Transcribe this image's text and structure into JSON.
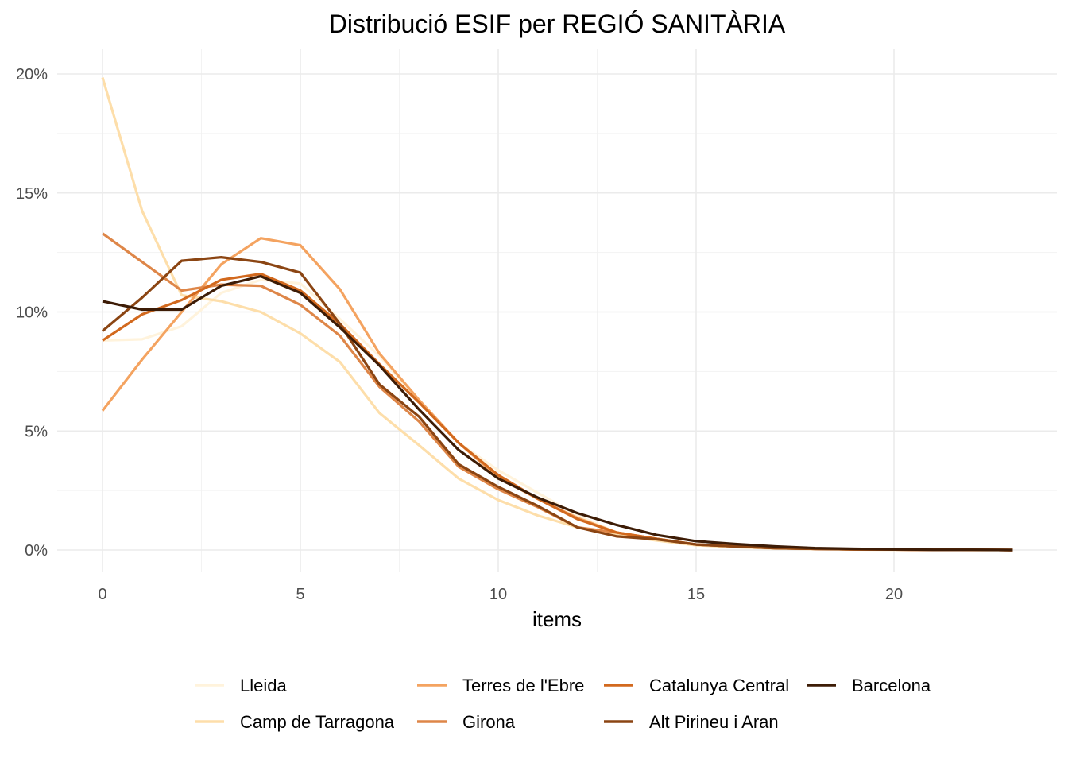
{
  "chart_data": {
    "type": "line",
    "title": "Distribució ESIF per REGIÓ SANITÀRIA",
    "xlabel": "items",
    "ylabel": "",
    "xlim": [
      0,
      23
    ],
    "ylim": [
      0,
      20
    ],
    "x_ticks": [
      0,
      5,
      10,
      15,
      20
    ],
    "x_tick_labels": [
      "0",
      "5",
      "10",
      "15",
      "20"
    ],
    "y_ticks": [
      0,
      5,
      10,
      15,
      20
    ],
    "y_tick_labels": [
      "0%",
      "5%",
      "10%",
      "15%",
      "20%"
    ],
    "grid": true,
    "legend_position": "bottom",
    "x": [
      0,
      1,
      2,
      3,
      4,
      5,
      6,
      7,
      8,
      9,
      10,
      11,
      12,
      13,
      14,
      15,
      16,
      17,
      18,
      19,
      20,
      21,
      22,
      23
    ],
    "series": [
      {
        "name": "Lleida",
        "color": "#FFF3DC",
        "values": [
          8.8,
          8.85,
          9.4,
          10.8,
          11.35,
          11.2,
          9.7,
          8.15,
          6.25,
          4.5,
          3.35,
          2.4,
          1.45,
          0.73,
          0.47,
          0.23,
          0.15,
          0.08,
          0.05,
          0.03,
          0.02,
          0.01,
          0.01,
          0.0
        ]
      },
      {
        "name": "Camp de Tarragona",
        "color": "#FDDEAA",
        "values": [
          19.85,
          14.25,
          10.7,
          10.45,
          10.0,
          9.1,
          7.9,
          5.75,
          4.4,
          3.0,
          2.1,
          1.45,
          0.95,
          0.65,
          0.4,
          0.2,
          0.12,
          0.06,
          0.04,
          0.02,
          0.01,
          0.01,
          0.0,
          0.0
        ]
      },
      {
        "name": "Terres de l'Ebre",
        "color": "#F4A360",
        "values": [
          5.85,
          8.0,
          10.0,
          12.0,
          13.1,
          12.8,
          10.95,
          8.25,
          6.3,
          4.5,
          3.05,
          2.15,
          1.35,
          0.73,
          0.47,
          0.23,
          0.15,
          0.08,
          0.05,
          0.03,
          0.02,
          0.01,
          0.01,
          0.0
        ]
      },
      {
        "name": "Girona",
        "color": "#DE8648",
        "values": [
          13.3,
          12.1,
          10.9,
          11.15,
          11.1,
          10.3,
          9.0,
          6.85,
          5.4,
          3.5,
          2.55,
          1.8,
          0.95,
          0.73,
          0.47,
          0.23,
          0.15,
          0.08,
          0.05,
          0.03,
          0.02,
          0.01,
          0.01,
          0.0
        ]
      },
      {
        "name": "Catalunya Central",
        "color": "#D2691E",
        "values": [
          8.8,
          9.9,
          10.5,
          11.35,
          11.6,
          10.9,
          9.5,
          7.8,
          6.2,
          4.5,
          3.15,
          2.15,
          1.3,
          0.73,
          0.47,
          0.23,
          0.15,
          0.08,
          0.05,
          0.03,
          0.02,
          0.01,
          0.01,
          0.0
        ]
      },
      {
        "name": "Alt Pirineu i Aran",
        "color": "#8B4513",
        "values": [
          9.2,
          10.6,
          12.15,
          12.3,
          12.1,
          11.65,
          9.5,
          6.95,
          5.6,
          3.6,
          2.65,
          1.85,
          0.95,
          0.57,
          0.45,
          0.23,
          0.15,
          0.08,
          0.05,
          0.03,
          0.02,
          0.01,
          0.01,
          0.0
        ]
      },
      {
        "name": "Barcelona",
        "color": "#3D1C06",
        "values": [
          10.45,
          10.1,
          10.1,
          11.1,
          11.5,
          10.8,
          9.35,
          7.75,
          5.9,
          4.2,
          3.0,
          2.2,
          1.55,
          1.05,
          0.63,
          0.37,
          0.25,
          0.15,
          0.08,
          0.05,
          0.03,
          0.01,
          0.01,
          0.0
        ]
      }
    ]
  }
}
